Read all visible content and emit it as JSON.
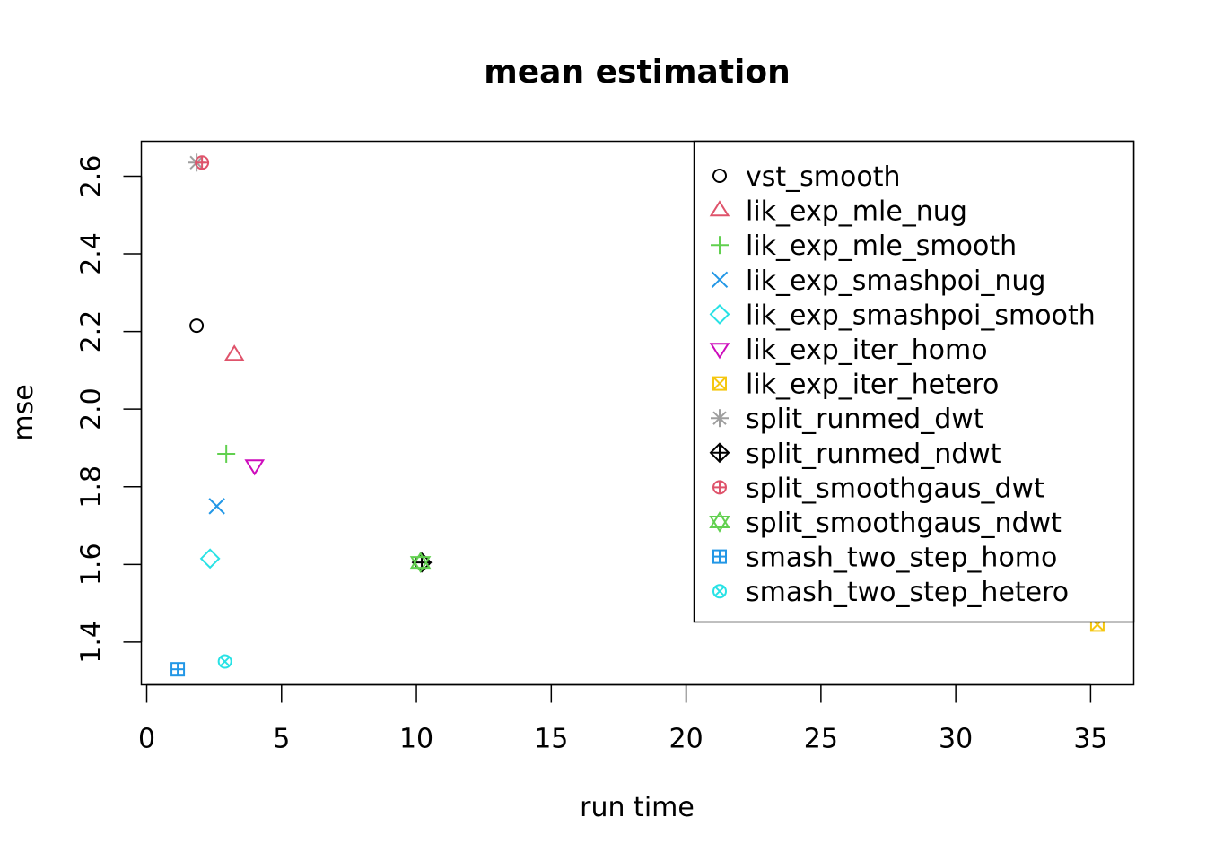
{
  "chart_data": {
    "type": "scatter",
    "title": "mean estimation",
    "xlabel": "run time",
    "ylabel": "mse",
    "xlim": [
      -0.2,
      36.6
    ],
    "ylim": [
      1.29,
      2.69
    ],
    "xticks": [
      0,
      5,
      10,
      15,
      20,
      25,
      30,
      35
    ],
    "yticks": [
      1.4,
      1.6,
      1.8,
      2.0,
      2.2,
      2.4,
      2.6
    ],
    "xtick_labels": [
      "0",
      "5",
      "10",
      "15",
      "20",
      "25",
      "30",
      "35"
    ],
    "ytick_labels": [
      "1.4",
      "1.6",
      "1.8",
      "2.0",
      "2.2",
      "2.4",
      "2.6"
    ],
    "grid": false,
    "legend_position": "top-right",
    "series": [
      {
        "name": "vst_smooth",
        "marker": "circle",
        "color": "#000000",
        "x": 1.85,
        "y": 2.215
      },
      {
        "name": "lik_exp_mle_nug",
        "marker": "triangle-up",
        "color": "#DF536B",
        "x": 3.25,
        "y": 2.14
      },
      {
        "name": "lik_exp_mle_smooth",
        "marker": "plus",
        "color": "#61D04F",
        "x": 2.95,
        "y": 1.885
      },
      {
        "name": "lik_exp_smashpoi_nug",
        "marker": "cross",
        "color": "#2297E6",
        "x": 2.6,
        "y": 1.75
      },
      {
        "name": "lik_exp_smashpoi_smooth",
        "marker": "diamond",
        "color": "#28E2E5",
        "x": 2.35,
        "y": 1.615
      },
      {
        "name": "lik_exp_iter_homo",
        "marker": "triangle-down",
        "color": "#CD0BBC",
        "x": 4.0,
        "y": 1.855
      },
      {
        "name": "lik_exp_iter_hetero",
        "marker": "square-x",
        "color": "#F5C710",
        "x": 35.25,
        "y": 1.445
      },
      {
        "name": "split_runmed_dwt",
        "marker": "asterisk",
        "color": "#9E9E9E",
        "x": 1.85,
        "y": 2.635
      },
      {
        "name": "split_runmed_ndwt",
        "marker": "diamond-plus",
        "color": "#000000",
        "x": 10.2,
        "y": 1.605
      },
      {
        "name": "split_smoothgaus_dwt",
        "marker": "circle-plus",
        "color": "#DF536B",
        "x": 2.05,
        "y": 2.635
      },
      {
        "name": "split_smoothgaus_ndwt",
        "marker": "star-of-david",
        "color": "#61D04F",
        "x": 10.15,
        "y": 1.605
      },
      {
        "name": "smash_two_step_homo",
        "marker": "square-plus",
        "color": "#2297E6",
        "x": 1.15,
        "y": 1.33
      },
      {
        "name": "smash_two_step_hetero",
        "marker": "circle-x",
        "color": "#28E2E5",
        "x": 2.9,
        "y": 1.35
      }
    ]
  }
}
